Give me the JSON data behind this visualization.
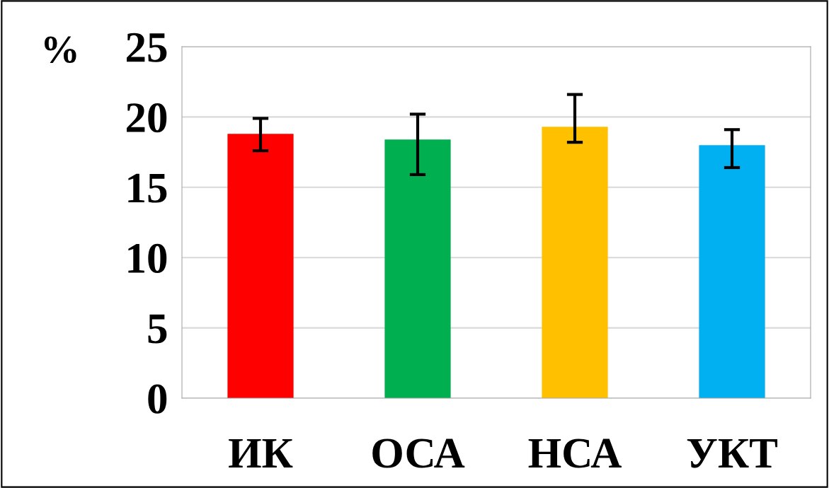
{
  "chart_data": {
    "type": "bar",
    "ylabel": "%",
    "categories": [
      "ИК",
      "ОСА",
      "НСА",
      "УКТ"
    ],
    "values": [
      18.8,
      18.4,
      19.3,
      18.0
    ],
    "colors": [
      "#ff0000",
      "#00b050",
      "#ffc000",
      "#00b0f0"
    ],
    "errors": [
      [
        17.6,
        19.9
      ],
      [
        15.9,
        20.2
      ],
      [
        18.2,
        21.6
      ],
      [
        16.4,
        19.1
      ]
    ],
    "ylim": [
      0,
      25
    ],
    "yticks": [
      0,
      5,
      10,
      15,
      20,
      25
    ],
    "grid": "y",
    "legend": false
  }
}
